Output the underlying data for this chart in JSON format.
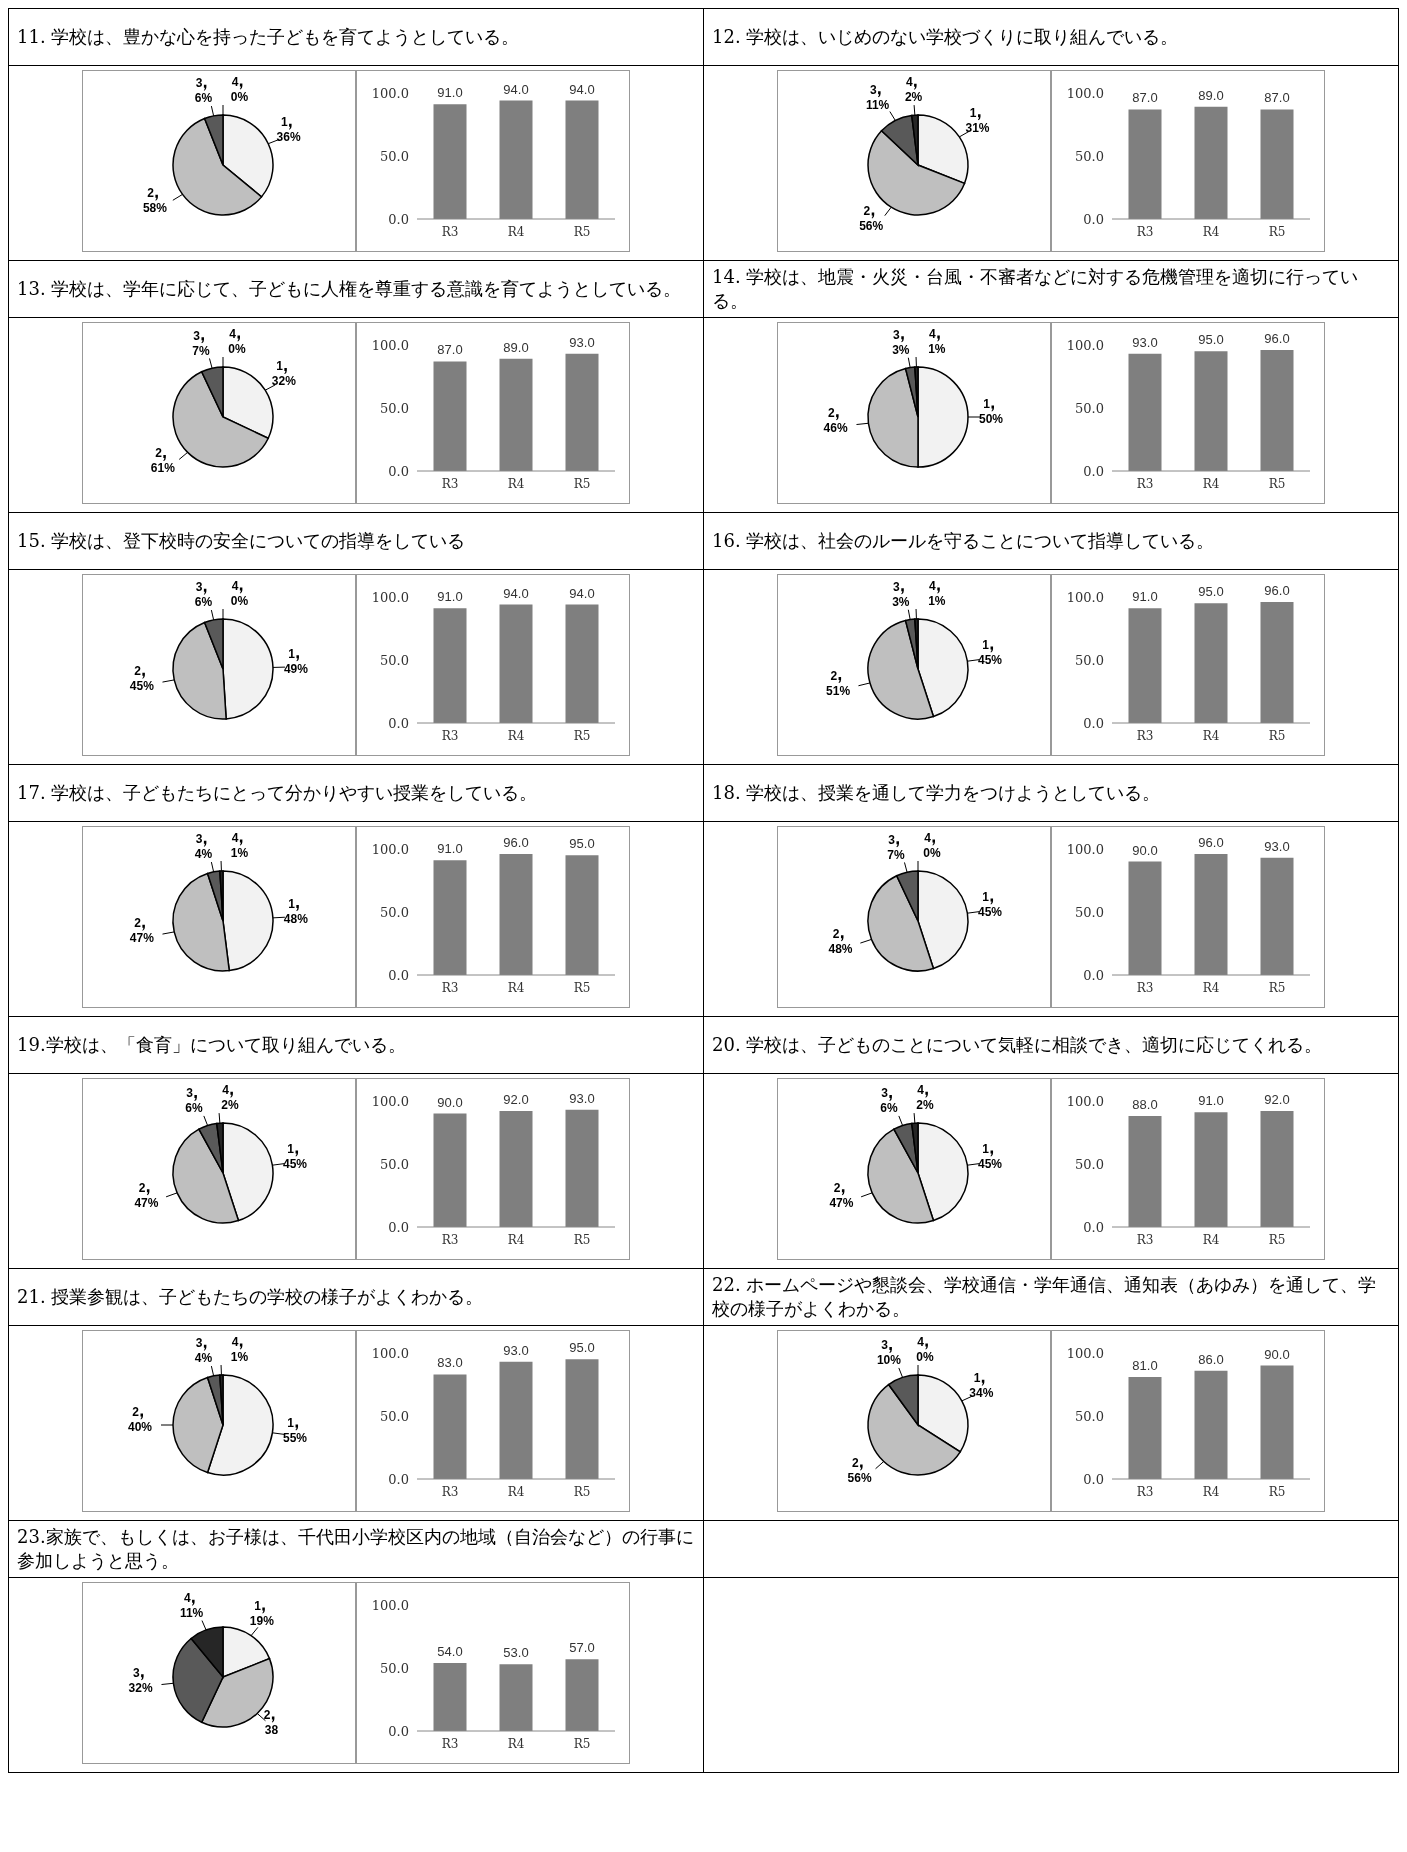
{
  "chart_data": [
    {
      "type": "pie",
      "title": "11. 学校は、豊かな心を持った子どもを育てようとしている。",
      "categories": [
        "1",
        "2",
        "3",
        "4"
      ],
      "values": [
        36,
        58,
        6,
        0
      ],
      "value_labels": [
        "36%",
        "58%",
        "6%",
        "0%"
      ],
      "colors": [
        "#f2f2f2",
        "#bfbfbf",
        "#595959",
        "#262626"
      ]
    },
    {
      "type": "bar",
      "categories": [
        "R3",
        "R4",
        "R5"
      ],
      "values": [
        91,
        94,
        94
      ],
      "value_labels": [
        "91.0",
        "94.0",
        "94.0"
      ],
      "color": "#7f7f7f",
      "ylim": [
        0,
        100
      ],
      "yticks": [
        {
          "value": 0,
          "label": "0.0"
        },
        {
          "value": 50,
          "label": "50.0"
        },
        {
          "value": 100,
          "label": "100.0"
        }
      ]
    },
    {
      "type": "pie",
      "title": "12. 学校は、いじめのない学校づくりに取り組んでいる。",
      "categories": [
        "1",
        "2",
        "3",
        "4"
      ],
      "values": [
        31,
        56,
        11,
        2
      ],
      "value_labels": [
        "31%",
        "56%",
        "11%",
        "2%"
      ],
      "colors": [
        "#f2f2f2",
        "#bfbfbf",
        "#595959",
        "#262626"
      ]
    },
    {
      "type": "bar",
      "categories": [
        "R3",
        "R4",
        "R5"
      ],
      "values": [
        87,
        89,
        87
      ],
      "value_labels": [
        "87.0",
        "89.0",
        "87.0"
      ],
      "color": "#7f7f7f",
      "ylim": [
        0,
        100
      ],
      "yticks": [
        {
          "value": 0,
          "label": "0.0"
        },
        {
          "value": 50,
          "label": "50.0"
        },
        {
          "value": 100,
          "label": "100.0"
        }
      ]
    },
    {
      "type": "pie",
      "title": "13. 学校は、学年に応じて、子どもに人権を尊重する意識を育てようとしている。",
      "categories": [
        "1",
        "2",
        "3",
        "4"
      ],
      "values": [
        32,
        61,
        7,
        0
      ],
      "value_labels": [
        "32%",
        "61%",
        "7%",
        "0%"
      ],
      "colors": [
        "#f2f2f2",
        "#bfbfbf",
        "#595959",
        "#262626"
      ]
    },
    {
      "type": "bar",
      "categories": [
        "R3",
        "R4",
        "R5"
      ],
      "values": [
        87,
        89,
        93
      ],
      "value_labels": [
        "87.0",
        "89.0",
        "93.0"
      ],
      "color": "#7f7f7f",
      "ylim": [
        0,
        100
      ],
      "yticks": [
        {
          "value": 0,
          "label": "0.0"
        },
        {
          "value": 50,
          "label": "50.0"
        },
        {
          "value": 100,
          "label": "100.0"
        }
      ]
    },
    {
      "type": "pie",
      "title": "14. 学校は、地震・火災・台風・不審者などに対する危機管理を適切に行っている。",
      "categories": [
        "1",
        "2",
        "3",
        "4"
      ],
      "values": [
        50,
        46,
        3,
        1
      ],
      "value_labels": [
        "50%",
        "46%",
        "3%",
        "1%"
      ],
      "colors": [
        "#f2f2f2",
        "#bfbfbf",
        "#595959",
        "#262626"
      ]
    },
    {
      "type": "bar",
      "categories": [
        "R3",
        "R4",
        "R5"
      ],
      "values": [
        93,
        95,
        96
      ],
      "value_labels": [
        "93.0",
        "95.0",
        "96.0"
      ],
      "color": "#7f7f7f",
      "ylim": [
        0,
        100
      ],
      "yticks": [
        {
          "value": 0,
          "label": "0.0"
        },
        {
          "value": 50,
          "label": "50.0"
        },
        {
          "value": 100,
          "label": "100.0"
        }
      ]
    },
    {
      "type": "pie",
      "title": "15. 学校は、登下校時の安全についての指導をしている",
      "categories": [
        "1",
        "2",
        "3",
        "4"
      ],
      "values": [
        49,
        45,
        6,
        0
      ],
      "value_labels": [
        "49%",
        "45%",
        "6%",
        "0%"
      ],
      "colors": [
        "#f2f2f2",
        "#bfbfbf",
        "#595959",
        "#262626"
      ]
    },
    {
      "type": "bar",
      "categories": [
        "R3",
        "R4",
        "R5"
      ],
      "values": [
        91,
        94,
        94
      ],
      "value_labels": [
        "91.0",
        "94.0",
        "94.0"
      ],
      "color": "#7f7f7f",
      "ylim": [
        0,
        100
      ],
      "yticks": [
        {
          "value": 0,
          "label": "0.0"
        },
        {
          "value": 50,
          "label": "50.0"
        },
        {
          "value": 100,
          "label": "100.0"
        }
      ]
    },
    {
      "type": "pie",
      "title": "16. 学校は、社会のルールを守ることについて指導している。",
      "categories": [
        "1",
        "2",
        "3",
        "4"
      ],
      "values": [
        45,
        51,
        3,
        1
      ],
      "value_labels": [
        "45%",
        "51%",
        "3%",
        "1%"
      ],
      "colors": [
        "#f2f2f2",
        "#bfbfbf",
        "#595959",
        "#262626"
      ]
    },
    {
      "type": "bar",
      "categories": [
        "R3",
        "R4",
        "R5"
      ],
      "values": [
        91,
        95,
        96
      ],
      "value_labels": [
        "91.0",
        "95.0",
        "96.0"
      ],
      "color": "#7f7f7f",
      "ylim": [
        0,
        100
      ],
      "yticks": [
        {
          "value": 0,
          "label": "0.0"
        },
        {
          "value": 50,
          "label": "50.0"
        },
        {
          "value": 100,
          "label": "100.0"
        }
      ]
    },
    {
      "type": "pie",
      "title": "17. 学校は、子どもたちにとって分かりやすい授業をしている。",
      "categories": [
        "1",
        "2",
        "3",
        "4"
      ],
      "values": [
        48,
        47,
        4,
        1
      ],
      "value_labels": [
        "48%",
        "47%",
        "4%",
        "1%"
      ],
      "colors": [
        "#f2f2f2",
        "#bfbfbf",
        "#595959",
        "#262626"
      ]
    },
    {
      "type": "bar",
      "categories": [
        "R3",
        "R4",
        "R5"
      ],
      "values": [
        91,
        96,
        95
      ],
      "value_labels": [
        "91.0",
        "96.0",
        "95.0"
      ],
      "color": "#7f7f7f",
      "ylim": [
        0,
        100
      ],
      "yticks": [
        {
          "value": 0,
          "label": "0.0"
        },
        {
          "value": 50,
          "label": "50.0"
        },
        {
          "value": 100,
          "label": "100.0"
        }
      ]
    },
    {
      "type": "pie",
      "title": "18. 学校は、授業を通して学力をつけようとしている。",
      "categories": [
        "1",
        "2",
        "3",
        "4"
      ],
      "values": [
        45,
        48,
        7,
        0
      ],
      "value_labels": [
        "45%",
        "48%",
        "7%",
        "0%"
      ],
      "colors": [
        "#f2f2f2",
        "#bfbfbf",
        "#595959",
        "#262626"
      ]
    },
    {
      "type": "bar",
      "categories": [
        "R3",
        "R4",
        "R5"
      ],
      "values": [
        90,
        96,
        93
      ],
      "value_labels": [
        "90.0",
        "96.0",
        "93.0"
      ],
      "color": "#7f7f7f",
      "ylim": [
        0,
        100
      ],
      "yticks": [
        {
          "value": 0,
          "label": "0.0"
        },
        {
          "value": 50,
          "label": "50.0"
        },
        {
          "value": 100,
          "label": "100.0"
        }
      ]
    },
    {
      "type": "pie",
      "title": "19.学校は、「食育」について取り組んでいる。",
      "categories": [
        "1",
        "2",
        "3",
        "4"
      ],
      "values": [
        45,
        47,
        6,
        2
      ],
      "value_labels": [
        "45%",
        "47%",
        "6%",
        "2%"
      ],
      "colors": [
        "#f2f2f2",
        "#bfbfbf",
        "#595959",
        "#262626"
      ]
    },
    {
      "type": "bar",
      "categories": [
        "R3",
        "R4",
        "R5"
      ],
      "values": [
        90,
        92,
        93
      ],
      "value_labels": [
        "90.0",
        "92.0",
        "93.0"
      ],
      "color": "#7f7f7f",
      "ylim": [
        0,
        100
      ],
      "yticks": [
        {
          "value": 0,
          "label": "0.0"
        },
        {
          "value": 50,
          "label": "50.0"
        },
        {
          "value": 100,
          "label": "100.0"
        }
      ]
    },
    {
      "type": "pie",
      "title": "20. 学校は、子どものことについて気軽に相談でき、適切に応じてくれる。",
      "categories": [
        "1",
        "2",
        "3",
        "4"
      ],
      "values": [
        45,
        47,
        6,
        2
      ],
      "value_labels": [
        "45%",
        "47%",
        "6%",
        "2%"
      ],
      "colors": [
        "#f2f2f2",
        "#bfbfbf",
        "#595959",
        "#262626"
      ]
    },
    {
      "type": "bar",
      "categories": [
        "R3",
        "R4",
        "R5"
      ],
      "values": [
        88,
        91,
        92
      ],
      "value_labels": [
        "88.0",
        "91.0",
        "92.0"
      ],
      "color": "#7f7f7f",
      "ylim": [
        0,
        100
      ],
      "yticks": [
        {
          "value": 0,
          "label": "0.0"
        },
        {
          "value": 50,
          "label": "50.0"
        },
        {
          "value": 100,
          "label": "100.0"
        }
      ]
    },
    {
      "type": "pie",
      "title": "21. 授業参観は、子どもたちの学校の様子がよくわかる。",
      "categories": [
        "1",
        "2",
        "3",
        "4"
      ],
      "values": [
        55,
        40,
        4,
        1
      ],
      "value_labels": [
        "55%",
        "40%",
        "4%",
        "1%"
      ],
      "colors": [
        "#f2f2f2",
        "#bfbfbf",
        "#595959",
        "#262626"
      ]
    },
    {
      "type": "bar",
      "categories": [
        "R3",
        "R4",
        "R5"
      ],
      "values": [
        83,
        93,
        95
      ],
      "value_labels": [
        "83.0",
        "93.0",
        "95.0"
      ],
      "color": "#7f7f7f",
      "ylim": [
        0,
        100
      ],
      "yticks": [
        {
          "value": 0,
          "label": "0.0"
        },
        {
          "value": 50,
          "label": "50.0"
        },
        {
          "value": 100,
          "label": "100.0"
        }
      ]
    },
    {
      "type": "pie",
      "title": "22. ホームページや懇談会、学校通信・学年通信、通知表（あゆみ）を通して、学校の様子がよくわかる。",
      "categories": [
        "1",
        "2",
        "3",
        "4"
      ],
      "values": [
        34,
        56,
        10,
        0
      ],
      "value_labels": [
        "34%",
        "56%",
        "10%",
        "0%"
      ],
      "colors": [
        "#f2f2f2",
        "#bfbfbf",
        "#595959",
        "#262626"
      ]
    },
    {
      "type": "bar",
      "categories": [
        "R3",
        "R4",
        "R5"
      ],
      "values": [
        81,
        86,
        90
      ],
      "value_labels": [
        "81.0",
        "86.0",
        "90.0"
      ],
      "color": "#7f7f7f",
      "ylim": [
        0,
        100
      ],
      "yticks": [
        {
          "value": 0,
          "label": "0.0"
        },
        {
          "value": 50,
          "label": "50.0"
        },
        {
          "value": 100,
          "label": "100.0"
        }
      ]
    },
    {
      "type": "pie",
      "title": "23.家族で、もしくは、お子様は、千代田小学校区内の地域（自治会など）の行事に参加しようと思う。",
      "categories": [
        "1",
        "2",
        "3",
        "4"
      ],
      "values": [
        19,
        38,
        32,
        11
      ],
      "value_labels": [
        "19%",
        "38",
        "32%",
        "11%"
      ],
      "colors": [
        "#f2f2f2",
        "#bfbfbf",
        "#595959",
        "#262626"
      ]
    },
    {
      "type": "bar",
      "categories": [
        "R3",
        "R4",
        "R5"
      ],
      "values": [
        54,
        53,
        57
      ],
      "value_labels": [
        "54.0",
        "53.0",
        "57.0"
      ],
      "color": "#7f7f7f",
      "ylim": [
        0,
        100
      ],
      "yticks": [
        {
          "value": 0,
          "label": "0.0"
        },
        {
          "value": 50,
          "label": "50.0"
        },
        {
          "value": 100,
          "label": "100.0"
        }
      ]
    }
  ]
}
